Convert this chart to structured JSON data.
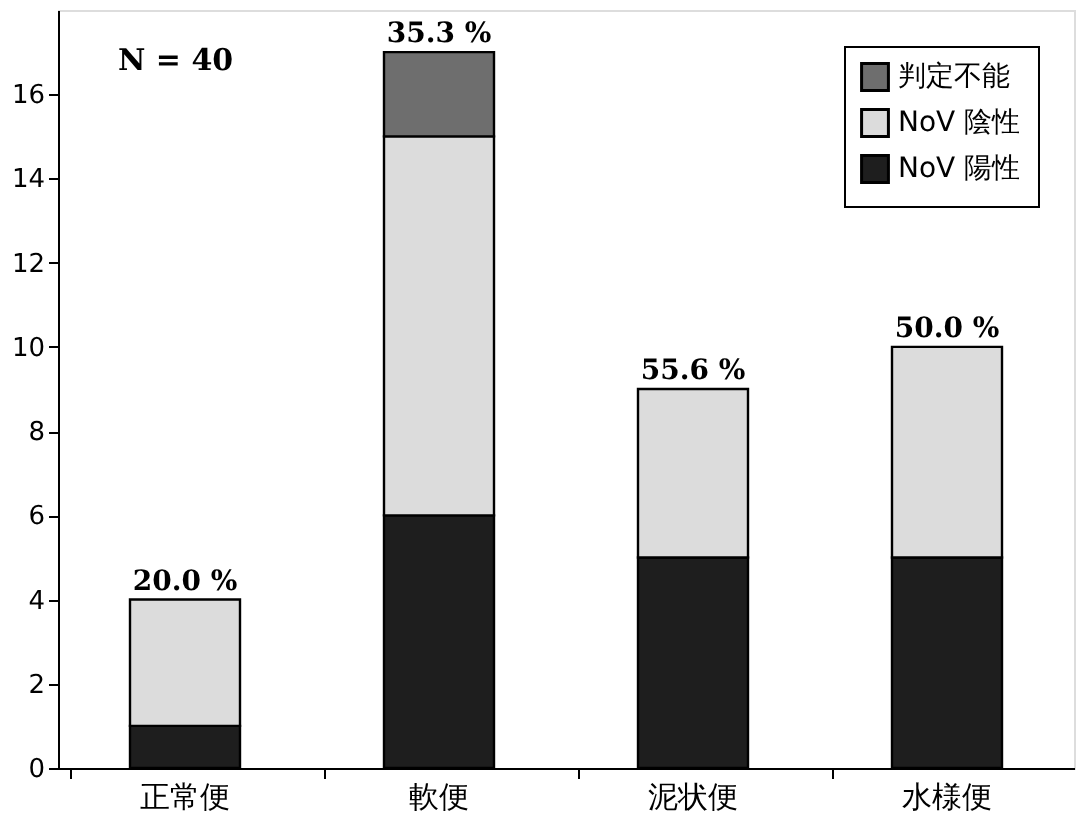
{
  "chart_data": {
    "type": "bar",
    "stacked": true,
    "categories": [
      "正常便",
      "軟便",
      "泥状便",
      "水様便"
    ],
    "series": [
      {
        "name": "NoV 陽性",
        "color": "#1e1e1e",
        "values": [
          1,
          6,
          5,
          5
        ]
      },
      {
        "name": "NoV 陰性",
        "color": "#dcdcdc",
        "values": [
          3,
          9,
          4,
          5
        ]
      },
      {
        "name": "判定不能",
        "color": "#6e6e6e",
        "values": [
          0,
          2,
          0,
          0
        ]
      }
    ],
    "ylim": [
      0,
      18
    ],
    "yticks": [
      0,
      2,
      4,
      6,
      8,
      10,
      12,
      14,
      16
    ],
    "annotations": [
      "N = 40",
      {
        "text": "20.0 %",
        "x": "正常便",
        "y": 4
      },
      {
        "text": "35.3 %",
        "x": "軟便",
        "y": 17
      },
      {
        "text": "55.6 %",
        "x": "泥状便",
        "y": 9
      },
      {
        "text": "50.0 %",
        "x": "水様便",
        "y": 10
      }
    ],
    "legend": "top right",
    "grid": false
  }
}
